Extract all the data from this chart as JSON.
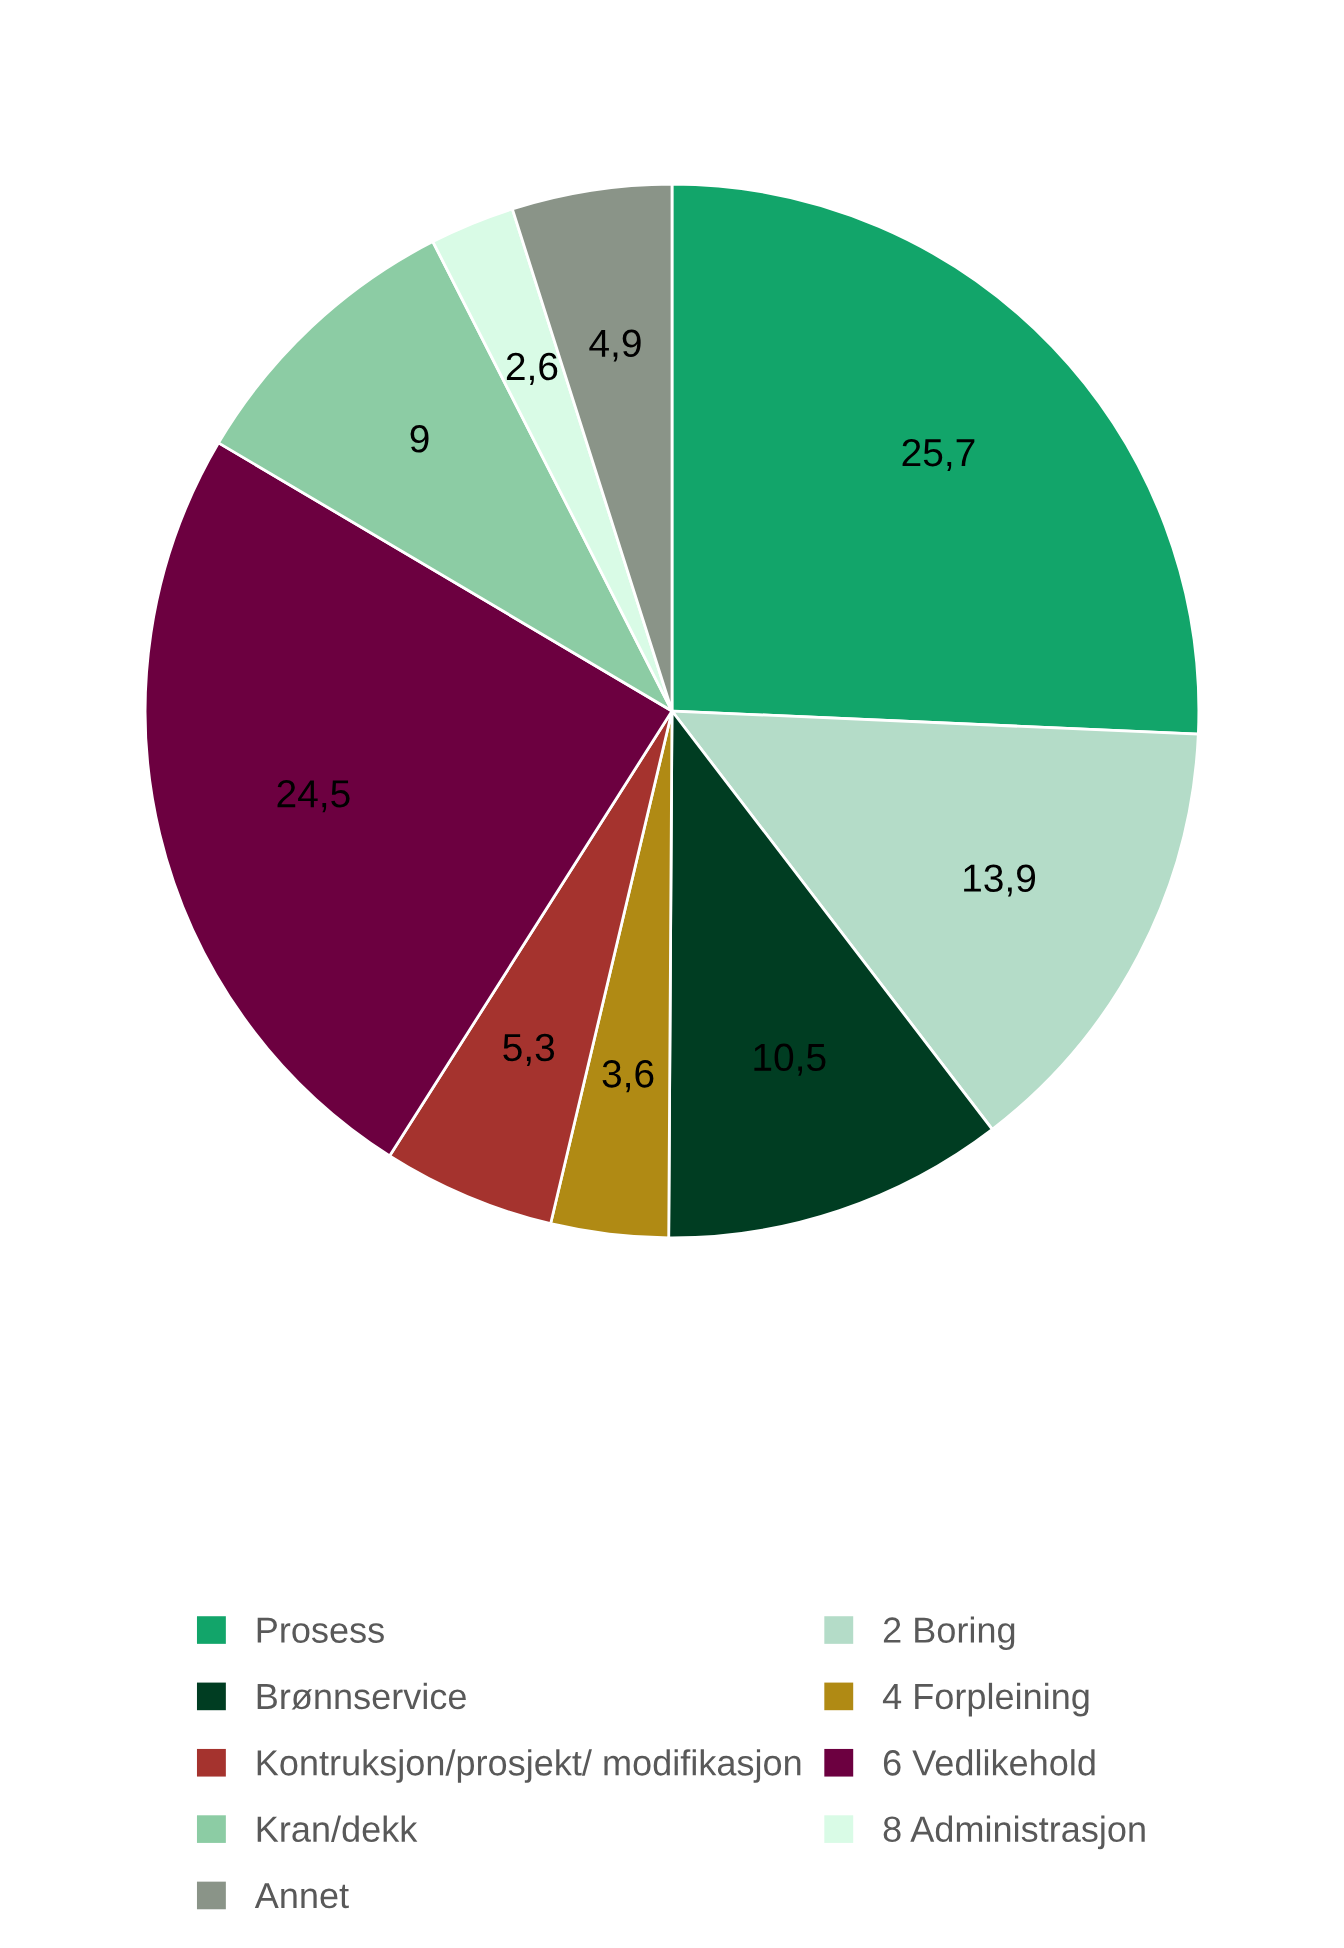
{
  "chart_data": {
    "type": "pie",
    "categories": [
      "Prosess",
      "2 Boring",
      "Brønnservice",
      "4 Forpleining",
      "Kontruksjon/prosjekt/ modifikasjon",
      "6 Vedlikehold",
      "Kran/dekk",
      "8 Administrasjon",
      "Annet"
    ],
    "values": [
      25.7,
      13.9,
      10.5,
      3.6,
      5.3,
      24.5,
      9,
      2.6,
      4.9
    ],
    "value_labels": [
      "25,7",
      "13,9",
      "10,5",
      "3,6",
      "5,3",
      "24,5",
      "9",
      "2,6",
      "4,9"
    ],
    "colors": [
      "#12a56a",
      "#b4dcc8",
      "#003d22",
      "#b08a14",
      "#a5332e",
      "#6c0040",
      "#8ccca4",
      "#d9fbe6",
      "#8a9488"
    ],
    "legend": "bottom"
  }
}
